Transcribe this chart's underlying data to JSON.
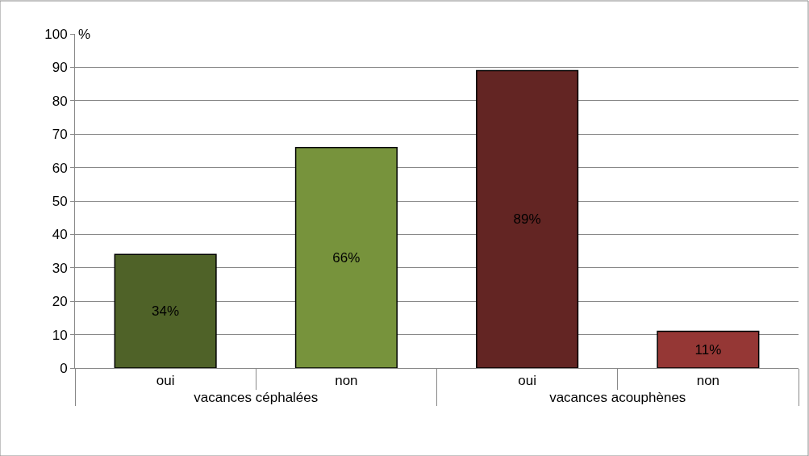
{
  "chart_data": {
    "type": "bar",
    "ylabel": "%",
    "categories": [
      "oui",
      "non",
      "oui",
      "non"
    ],
    "values": [
      34,
      66,
      89,
      11
    ],
    "colors": [
      "#4f6228",
      "#77933c",
      "#632523",
      "#953735"
    ],
    "value_labels": [
      "34%",
      "66%",
      "89%",
      "11%"
    ],
    "annotations": [
      "vacances céphalées",
      "vacances acouphènes"
    ],
    "ylim": [
      0,
      100
    ],
    "yticks": [
      0,
      10,
      20,
      30,
      40,
      50,
      60,
      70,
      80,
      90,
      100
    ],
    "grid": "y",
    "legend": false
  }
}
